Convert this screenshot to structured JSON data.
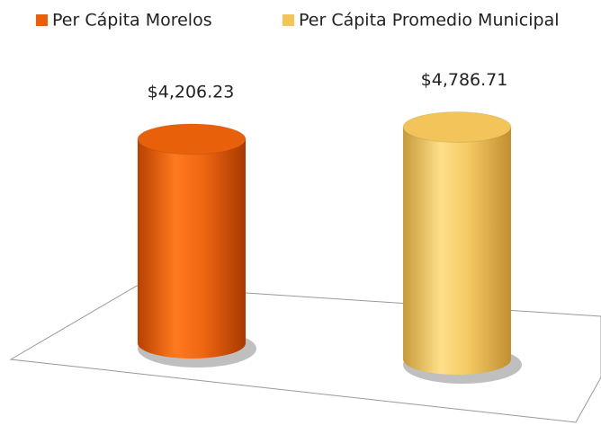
{
  "chart_data": {
    "type": "bar",
    "categories": [
      null
    ],
    "series": [
      {
        "name": "Per Cápita Morelos",
        "color": "#e8600a",
        "values": [
          4206.23
        ],
        "value_labels": [
          "$4,206.23"
        ]
      },
      {
        "name": "Per Cápita Promedio Municipal",
        "color": "#f2c45a",
        "values": [
          4786.71
        ],
        "value_labels": [
          "$4,786.71"
        ]
      }
    ],
    "ylim": [
      0,
      5000
    ]
  }
}
